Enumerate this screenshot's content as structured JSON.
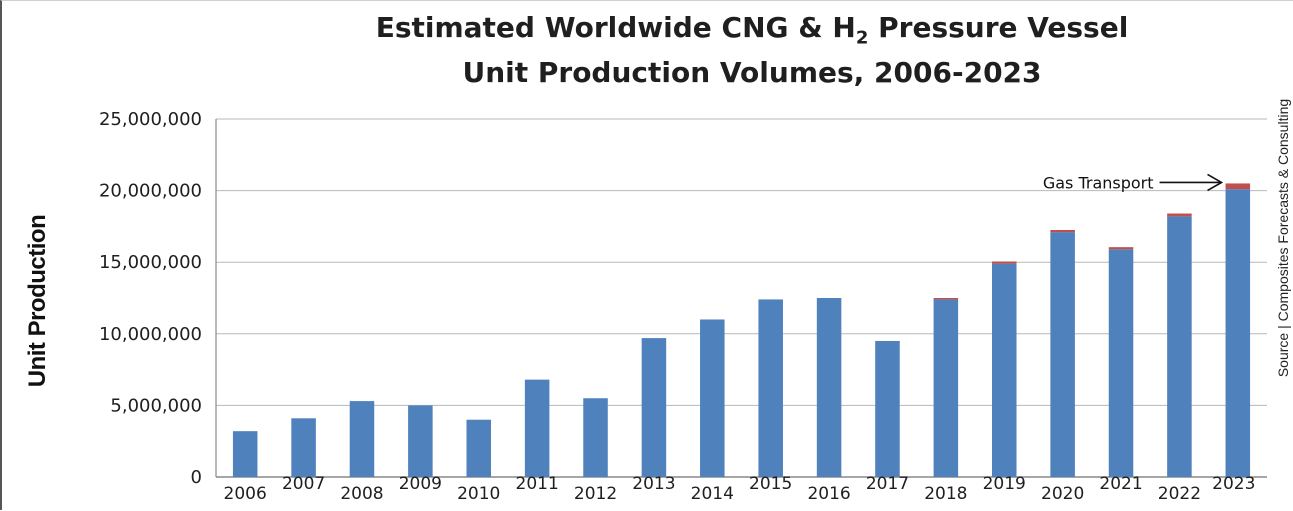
{
  "chart_data": {
    "type": "bar",
    "stacked": true,
    "title_line1": "Estimated Worldwide CNG & H",
    "title_sub": "2",
    "title_line1_tail": " Pressure Vessel",
    "title_line2": "Unit Production Volumes, 2006-2023",
    "ylabel": "Unit Production",
    "xlabel": "",
    "source": "Source | Composites Forecasts & Consulting",
    "categories": [
      "2006",
      "2007",
      "2008",
      "2009",
      "2010",
      "2011",
      "2012",
      "2013",
      "2014",
      "2015",
      "2016",
      "2017",
      "2018",
      "2019",
      "2020",
      "2021",
      "2022",
      "2023"
    ],
    "series": [
      {
        "color": "#4f81bd",
        "values": [
          3200000,
          4100000,
          5300000,
          5000000,
          4000000,
          6800000,
          5500000,
          9700000,
          11000000,
          12400000,
          12500000,
          9500000,
          12400000,
          14900000,
          17100000,
          15900000,
          18200000,
          20100000
        ]
      },
      {
        "color": "#c0504d",
        "values": [
          0,
          0,
          0,
          0,
          0,
          0,
          0,
          0,
          0,
          0,
          0,
          0,
          100000,
          150000,
          150000,
          150000,
          200000,
          400000
        ]
      }
    ],
    "ylim": [
      0,
      25000000
    ],
    "yticks": [
      0,
      5000000,
      10000000,
      15000000,
      20000000,
      25000000
    ],
    "ytick_labels": [
      "0",
      "5,000,000",
      "10,000,000",
      "15,000,000",
      "20,000,000",
      "25,000,000"
    ],
    "grid": true,
    "annotation": {
      "text": "Gas Transport",
      "target_category": "2023"
    },
    "colors": {
      "grid": "#b8b8b8",
      "axis": "#888888"
    }
  }
}
